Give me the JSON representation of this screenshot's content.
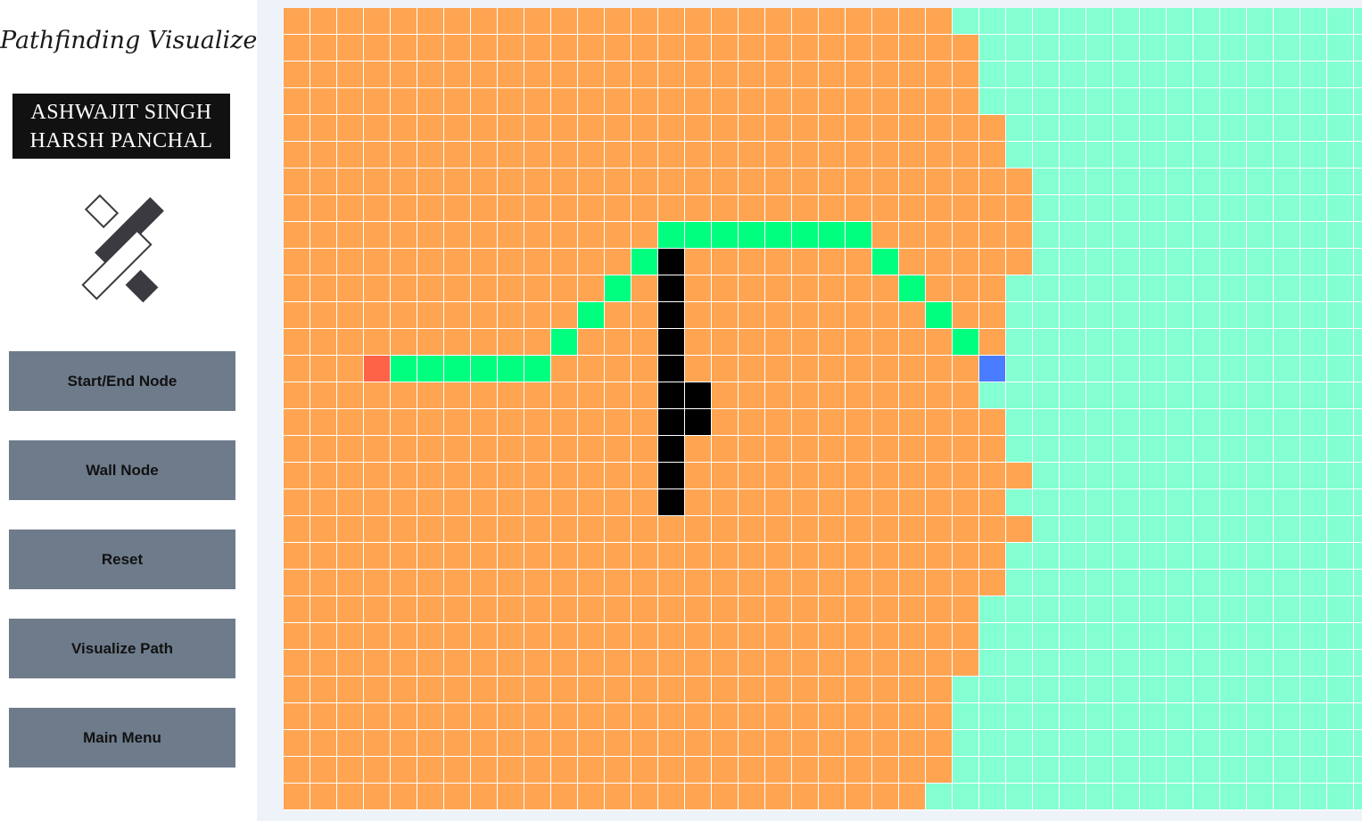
{
  "app": {
    "title": "Pathfinding Visualizer",
    "authors": [
      "ASHWAJIT SINGH",
      "HARSH PANCHAL"
    ]
  },
  "menu": {
    "buttons": [
      "Start/End Node",
      "Wall Node",
      "Reset",
      "Visualize Path",
      "Main Menu"
    ]
  },
  "grid": {
    "rows": 30,
    "cols": 41,
    "colors": {
      "visited": "#ffa552",
      "unvisited": "#83ffd2",
      "path": "#00ff7f",
      "wall": "#000000",
      "start": "#ff6347",
      "end": "#4a7cff",
      "gridline": "#ffffff"
    },
    "start": [
      13,
      3
    ],
    "end": [
      13,
      26
    ],
    "walls": [
      [
        9,
        14
      ],
      [
        10,
        14
      ],
      [
        11,
        14
      ],
      [
        12,
        14
      ],
      [
        13,
        14
      ],
      [
        14,
        14
      ],
      [
        14,
        15
      ],
      [
        15,
        14
      ],
      [
        15,
        15
      ],
      [
        16,
        14
      ],
      [
        17,
        14
      ],
      [
        18,
        14
      ]
    ],
    "path": [
      [
        13,
        4
      ],
      [
        13,
        5
      ],
      [
        13,
        6
      ],
      [
        13,
        7
      ],
      [
        13,
        8
      ],
      [
        13,
        9
      ],
      [
        12,
        10
      ],
      [
        11,
        11
      ],
      [
        10,
        12
      ],
      [
        9,
        13
      ],
      [
        8,
        14
      ],
      [
        8,
        15
      ],
      [
        8,
        16
      ],
      [
        8,
        17
      ],
      [
        8,
        18
      ],
      [
        8,
        19
      ],
      [
        8,
        20
      ],
      [
        8,
        21
      ],
      [
        9,
        22
      ],
      [
        10,
        23
      ],
      [
        11,
        24
      ],
      [
        12,
        25
      ]
    ],
    "visited_extent_cols_per_row": [
      25,
      26,
      26,
      26,
      27,
      27,
      28,
      28,
      28,
      28,
      27,
      27,
      27,
      26,
      26,
      27,
      27,
      28,
      27,
      28,
      27,
      27,
      26,
      26,
      26,
      25,
      25,
      25,
      25,
      24
    ]
  }
}
